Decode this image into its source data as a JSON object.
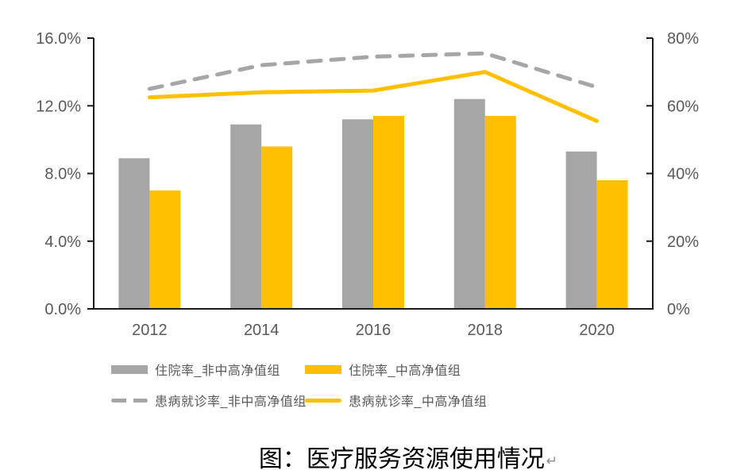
{
  "chart_data": {
    "type": "bar",
    "subtype": "bar-line-combo",
    "categories": [
      "2012",
      "2014",
      "2016",
      "2018",
      "2020"
    ],
    "series": [
      {
        "name": "住院率_非中高净值组",
        "type": "bar",
        "axis": "left",
        "color": "#A6A6A6",
        "values": [
          8.9,
          10.9,
          11.2,
          12.4,
          9.3
        ]
      },
      {
        "name": "住院率_中高净值组",
        "type": "bar",
        "axis": "left",
        "color": "#FFC000",
        "values": [
          7.0,
          9.6,
          11.4,
          11.4,
          7.6
        ]
      },
      {
        "name": "患病就诊率_非中高净值组",
        "type": "line",
        "style": "dashed",
        "axis": "right",
        "color": "#A6A6A6",
        "values": [
          65,
          72,
          74.5,
          75.5,
          65.5
        ]
      },
      {
        "name": "患病就诊率_中高净值组",
        "type": "line",
        "style": "solid",
        "axis": "right",
        "color": "#FFC000",
        "values": [
          62.5,
          64,
          64.5,
          70,
          55.5
        ]
      }
    ],
    "left_axis": {
      "min": 0,
      "max": 16,
      "tick_values": [
        0,
        4,
        8,
        12,
        16
      ],
      "tick_labels": [
        "0.0%",
        "4.0%",
        "8.0%",
        "12.0%",
        "16.0%"
      ]
    },
    "right_axis": {
      "min": 0,
      "max": 80,
      "tick_values": [
        0,
        20,
        40,
        60,
        80
      ],
      "tick_labels": [
        "0%",
        "20%",
        "40%",
        "60%",
        "80%"
      ]
    },
    "grid": false,
    "legend_position": "bottom",
    "title": "图：医疗服务资源使用情况"
  },
  "caption": {
    "text": "图：医疗服务资源使用情况",
    "paragraph_mark": "↵"
  },
  "colors": {
    "axis_line": "#1a1a1a",
    "axis_text": "#595959",
    "bar_gray": "#A6A6A6",
    "accent_yellow": "#FFC000"
  }
}
